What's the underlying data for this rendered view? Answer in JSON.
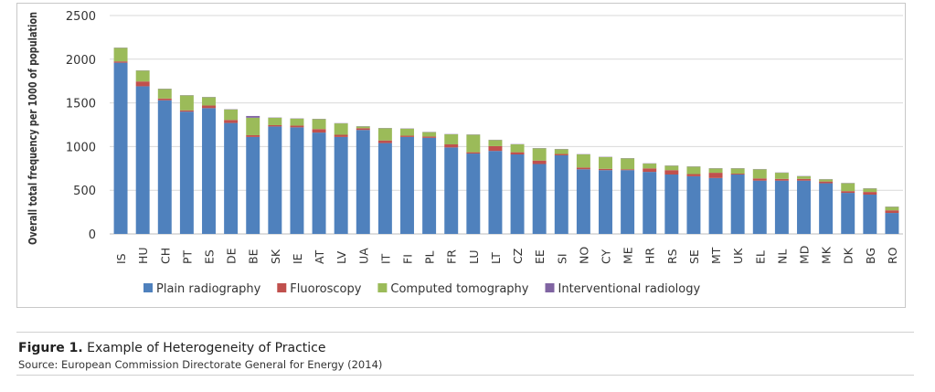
{
  "chart_data": {
    "type": "bar",
    "stacked": true,
    "ylabel": "Overall total frequency per 1000 of population",
    "ylim": [
      0,
      2500
    ],
    "yticks": [
      "0",
      "500",
      "1000",
      "1500",
      "2000",
      "2500"
    ],
    "grid": true,
    "legend_position": "bottom",
    "categories": [
      "IS",
      "HU",
      "CH",
      "PT",
      "ES",
      "DE",
      "BE",
      "SK",
      "IE",
      "AT",
      "LV",
      "UA",
      "IT",
      "FI",
      "PL",
      "FR",
      "LU",
      "LT",
      "CZ",
      "EE",
      "SI",
      "NO",
      "CY",
      "ME",
      "HR",
      "RS",
      "SE",
      "MT",
      "UK",
      "EL",
      "NL",
      "MD",
      "MK",
      "DK",
      "BG",
      "RO"
    ],
    "series": [
      {
        "name": "Plain radiography",
        "color": "#4f81bd",
        "values": [
          1960,
          1690,
          1530,
          1400,
          1440,
          1270,
          1110,
          1230,
          1220,
          1160,
          1110,
          1190,
          1040,
          1110,
          1100,
          990,
          920,
          950,
          910,
          800,
          900,
          740,
          730,
          730,
          710,
          680,
          660,
          640,
          680,
          610,
          610,
          610,
          580,
          470,
          450,
          240
        ]
      },
      {
        "name": "Fluoroscopy",
        "color": "#c0504d",
        "values": [
          15,
          55,
          20,
          15,
          30,
          35,
          20,
          15,
          20,
          40,
          25,
          20,
          30,
          15,
          15,
          35,
          15,
          55,
          25,
          40,
          15,
          20,
          15,
          10,
          40,
          50,
          25,
          60,
          10,
          25,
          20,
          20,
          20,
          20,
          30,
          30
        ]
      },
      {
        "name": "Computed tomography",
        "color": "#9bbb59",
        "values": [
          155,
          125,
          110,
          170,
          95,
          120,
          200,
          85,
          80,
          115,
          130,
          20,
          140,
          80,
          50,
          115,
          200,
          70,
          90,
          140,
          55,
          150,
          135,
          125,
          55,
          50,
          85,
          50,
          60,
          105,
          70,
          30,
          25,
          90,
          40,
          40
        ]
      },
      {
        "name": "Interventional radiology",
        "color": "#8064a2",
        "values": [
          3,
          3,
          3,
          3,
          3,
          3,
          20,
          3,
          3,
          3,
          3,
          3,
          3,
          3,
          3,
          3,
          3,
          3,
          3,
          3,
          3,
          3,
          3,
          3,
          3,
          3,
          3,
          3,
          3,
          3,
          3,
          3,
          3,
          3,
          3,
          3
        ]
      }
    ]
  },
  "caption": {
    "label": "Figure 1.",
    "title": " Example of Heterogeneity of Practice",
    "source": "Source: European Commission Directorate General for Energy (2014)"
  }
}
